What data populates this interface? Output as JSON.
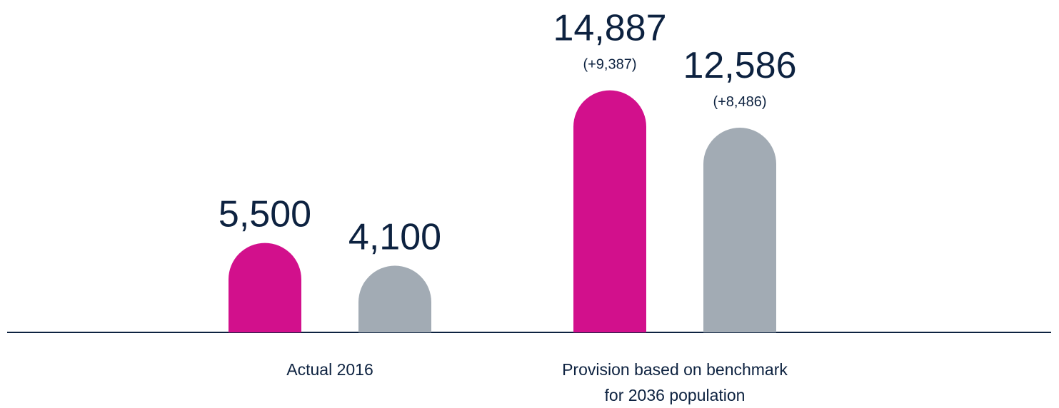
{
  "chart_data": {
    "type": "bar",
    "categories": [
      "Actual 2016",
      "Provision based on benchmark\nfor 2036 population"
    ],
    "series": [
      {
        "color": "#d2108c",
        "values": [
          5500,
          14887
        ],
        "value_labels": [
          "5,500",
          "14,887"
        ],
        "change_labels": [
          null,
          "(+9,387)"
        ]
      },
      {
        "color": "#a2abb4",
        "values": [
          4100,
          12586
        ],
        "value_labels": [
          "4,100",
          "12,586"
        ],
        "change_labels": [
          null,
          "(+8,486)"
        ]
      }
    ],
    "ylim": [
      0,
      20000
    ]
  }
}
